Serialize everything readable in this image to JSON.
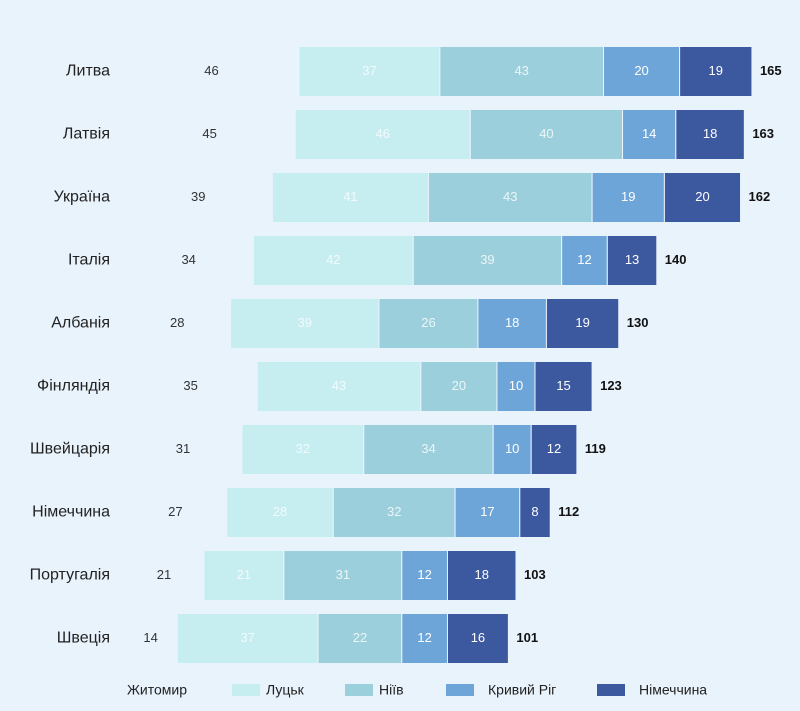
{
  "chart_data": {
    "type": "stacked-bar-horizontal",
    "categories": [
      "Литва",
      "Латвія",
      "Україна",
      "Італія",
      "Албанія",
      "Фінляндія",
      "Швейцарія",
      "Німеччина",
      "Португалія",
      "Швеція"
    ],
    "series": [
      {
        "name": "Житомир",
        "color": "#e9f3fc",
        "values": [
          46,
          45,
          39,
          34,
          28,
          35,
          31,
          27,
          21,
          14
        ]
      },
      {
        "name": "Луцьк",
        "color": "#c6eef1",
        "values": [
          37,
          46,
          41,
          42,
          39,
          43,
          32,
          28,
          21,
          37
        ]
      },
      {
        "name": "Ніїв",
        "color": "#9ccfdc",
        "values": [
          43,
          40,
          43,
          39,
          26,
          20,
          34,
          32,
          31,
          22
        ]
      },
      {
        "name": "Кривий Ріг",
        "color": "#6ea5d8",
        "values": [
          20,
          14,
          19,
          12,
          18,
          10,
          10,
          17,
          12,
          12
        ]
      },
      {
        "name": "Німеччина",
        "color": "#3c589f",
        "values": [
          19,
          18,
          20,
          13,
          19,
          15,
          12,
          8,
          18,
          16
        ]
      }
    ],
    "totals": [
      165,
      163,
      162,
      140,
      130,
      123,
      119,
      112,
      103,
      101
    ],
    "xlim": [
      0,
      175
    ]
  }
}
